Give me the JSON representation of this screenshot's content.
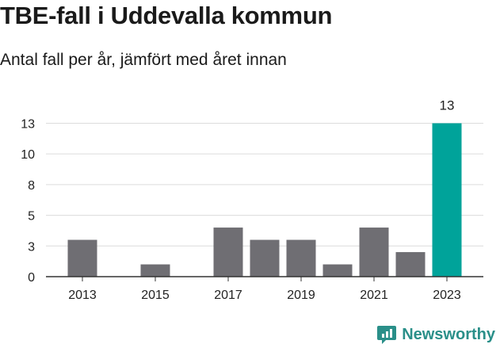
{
  "header": {
    "title": "TBE-fall i Uddevalla kommun",
    "subtitle": "Antal fall per år, jämfört med året innan"
  },
  "brand": {
    "name": "Newsworthy",
    "icon": "bar-chart-logo-icon"
  },
  "colors": {
    "bar": "#6f6e73",
    "highlight": "#00a39a",
    "grid": "#dcdcdc",
    "axis": "#333333",
    "brand": "#2a8f89"
  },
  "chart_data": {
    "type": "bar",
    "categories": [
      "2013",
      "2014",
      "2015",
      "2016",
      "2017",
      "2018",
      "2019",
      "2020",
      "2021",
      "2022",
      "2023"
    ],
    "values": [
      3,
      0,
      1,
      0,
      4,
      3,
      3,
      1,
      4,
      2,
      12.5
    ],
    "x_tick_labels": [
      "2013",
      "2015",
      "2017",
      "2019",
      "2021",
      "2023"
    ],
    "y_ticks": [
      0,
      2.5,
      5,
      7.5,
      10,
      12.5
    ],
    "y_tick_labels": [
      "0",
      "3",
      "5",
      "8",
      "10",
      "13"
    ],
    "ylim": [
      0,
      13.5
    ],
    "highlight": {
      "category": "2023",
      "label": "13"
    },
    "grid": true,
    "legend": "none"
  }
}
